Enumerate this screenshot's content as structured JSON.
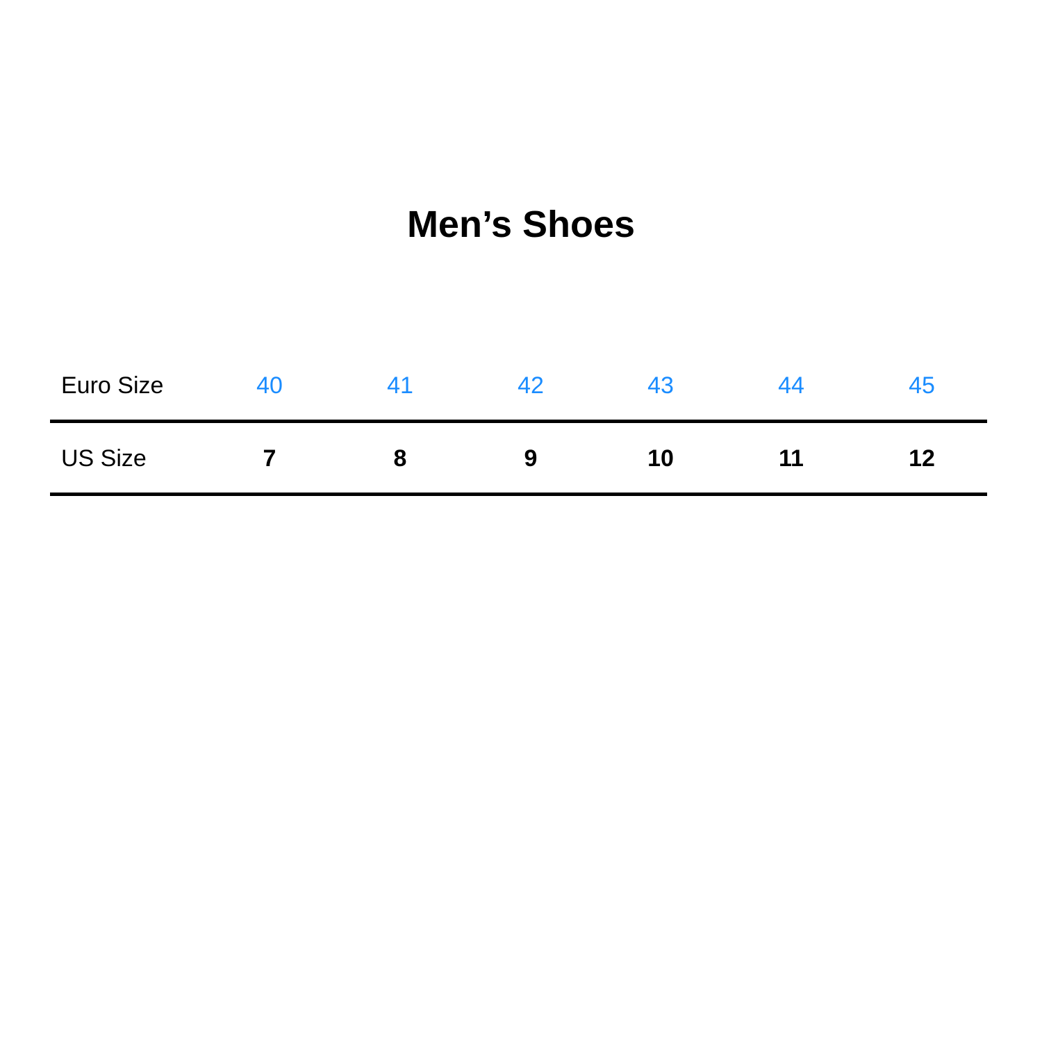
{
  "title": "Men’s Shoes",
  "accent_color": "#1a8cff",
  "table": {
    "rows": [
      {
        "label": "Euro Size",
        "values": [
          "40",
          "41",
          "42",
          "43",
          "44",
          "45"
        ]
      },
      {
        "label": "US Size",
        "values": [
          "7",
          "8",
          "9",
          "10",
          "11",
          "12"
        ]
      }
    ]
  }
}
